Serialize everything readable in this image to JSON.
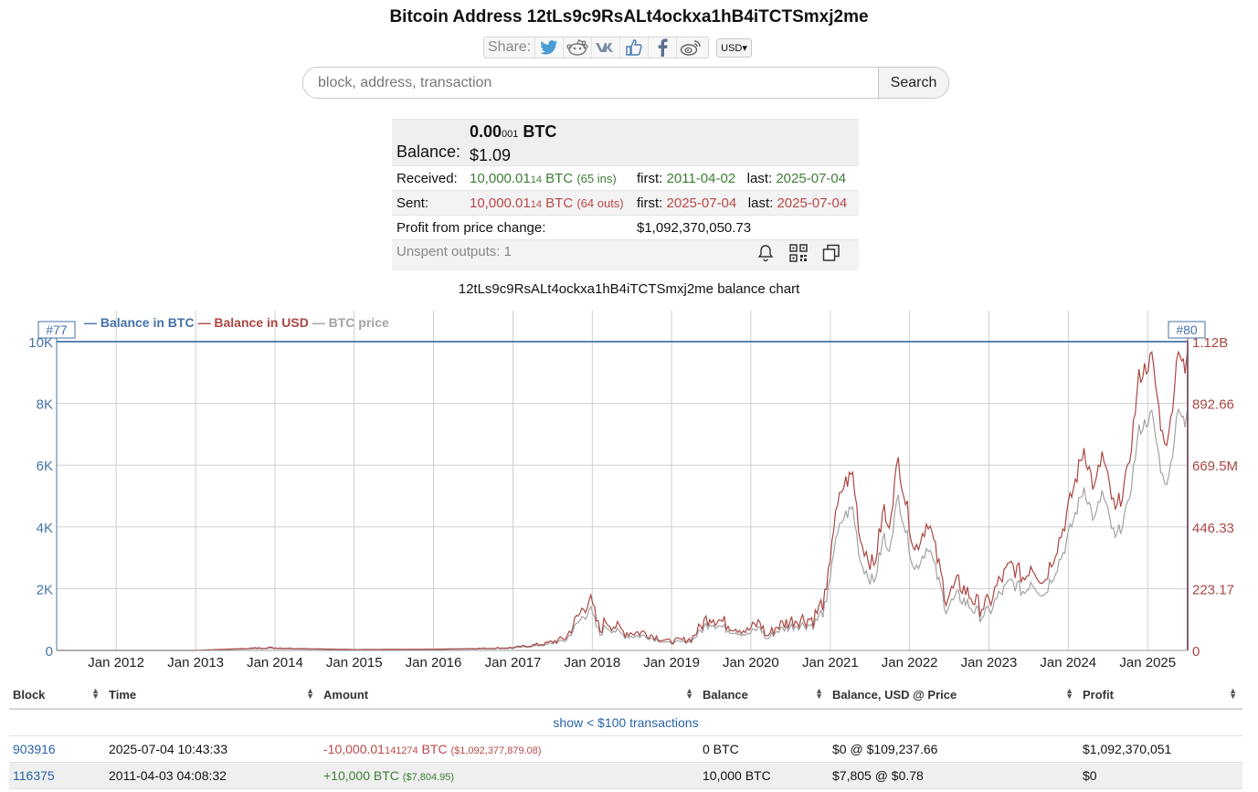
{
  "page": {
    "title": "Bitcoin Address 12tLs9c9RsALt4ockxa1hB4iTCTSmxj2me",
    "share_label": "Share:",
    "share_icons": [
      "twitter-icon",
      "reddit-icon",
      "vk-icon",
      "like-icon",
      "facebook-icon",
      "weibo-icon"
    ],
    "currency": "USD▾"
  },
  "search": {
    "placeholder": "block, address, transaction",
    "button": "Search"
  },
  "summary": {
    "balance_label": "Balance:",
    "balance_btc_main": "0.00",
    "balance_btc_small": "001",
    "balance_btc_unit": " BTC",
    "balance_usd": "$1.09",
    "received_label": "Received:",
    "received_main": "10,000.01",
    "received_small": "14",
    "received_unit": " BTC ",
    "received_count": "(65 ins)",
    "received_first_label": "first:",
    "received_first": "2011-04-02",
    "received_last_label": "last:",
    "received_last": "2025-07-04",
    "sent_label": "Sent:",
    "sent_main": "10,000.01",
    "sent_small": "14",
    "sent_unit": " BTC ",
    "sent_count": "(64 outs)",
    "sent_first_label": "first:",
    "sent_first": "2025-07-04",
    "sent_last_label": "last:",
    "sent_last": "2025-07-04",
    "profit_label": "Profit from price change:",
    "profit_value": "$1,092,370,050.73",
    "unspent_label": "Unspent outputs: 1",
    "action_icons": [
      "bell-icon",
      "qr-code-icon",
      "copy-icon"
    ]
  },
  "chart_title": "12tLs9c9RsALt4ockxa1hB4iTCTSmxj2me balance chart",
  "chart_data": {
    "type": "line",
    "series": [
      {
        "name": "Balance in BTC",
        "color": "#4572a7"
      },
      {
        "name": "Balance in USD",
        "color": "#aa4643"
      },
      {
        "name": "BTC price",
        "color": "#a3a3a3"
      }
    ],
    "left_axis_ticks": [
      "0",
      "2K",
      "4K",
      "6K",
      "8K",
      "10K"
    ],
    "left_axis_range": [
      0,
      10000
    ],
    "right_axis_ticks": [
      "0",
      "223.17",
      "446.33",
      "669.5M",
      "892.66",
      "1.12B"
    ],
    "right_axis_range": [
      0,
      1120000000
    ],
    "x_ticks": [
      "Jan 2012",
      "Jan 2013",
      "Jan 2014",
      "Jan 2015",
      "Jan 2016",
      "Jan 2017",
      "Jan 2018",
      "Jan 2019",
      "Jan 2020",
      "Jan 2021",
      "Jan 2022",
      "Jan 2023",
      "Jan 2024",
      "Jan 2025"
    ],
    "x_range": [
      "2011-04-02",
      "2025-07-04"
    ],
    "grid": true,
    "legend_position": "top-left",
    "markers": [
      "#77",
      "#80"
    ],
    "btc_balance": [
      {
        "x": "2011-04-03",
        "y": 10000
      },
      {
        "x": "2025-07-04",
        "y": 10000
      },
      {
        "x": "2025-07-04",
        "y": 0
      }
    ],
    "usd_balance": [
      {
        "x": "2011-04-03",
        "y": 7805
      },
      {
        "x": "2013-01-01",
        "y": 130000
      },
      {
        "x": "2013-12-01",
        "y": 10000000
      },
      {
        "x": "2014-06-01",
        "y": 6000000
      },
      {
        "x": "2015-01-01",
        "y": 3000000
      },
      {
        "x": "2016-01-01",
        "y": 4300000
      },
      {
        "x": "2016-07-01",
        "y": 6500000
      },
      {
        "x": "2017-01-01",
        "y": 10000000
      },
      {
        "x": "2017-06-01",
        "y": 25000000
      },
      {
        "x": "2017-09-01",
        "y": 45000000
      },
      {
        "x": "2017-12-17",
        "y": 190000000
      },
      {
        "x": "2018-02-06",
        "y": 70000000
      },
      {
        "x": "2018-03-05",
        "y": 110000000
      },
      {
        "x": "2018-06-01",
        "y": 65000000
      },
      {
        "x": "2018-09-01",
        "y": 65000000
      },
      {
        "x": "2018-12-15",
        "y": 33000000
      },
      {
        "x": "2019-04-01",
        "y": 41000000
      },
      {
        "x": "2019-06-26",
        "y": 130000000
      },
      {
        "x": "2019-09-01",
        "y": 100000000
      },
      {
        "x": "2019-12-15",
        "y": 70000000
      },
      {
        "x": "2020-02-12",
        "y": 103000000
      },
      {
        "x": "2020-03-13",
        "y": 50000000
      },
      {
        "x": "2020-05-01",
        "y": 88000000
      },
      {
        "x": "2020-08-01",
        "y": 115000000
      },
      {
        "x": "2020-10-15",
        "y": 115000000
      },
      {
        "x": "2020-12-15",
        "y": 200000000
      },
      {
        "x": "2021-01-08",
        "y": 410000000
      },
      {
        "x": "2021-02-21",
        "y": 580000000
      },
      {
        "x": "2021-03-13",
        "y": 610000000
      },
      {
        "x": "2021-04-14",
        "y": 640000000
      },
      {
        "x": "2021-05-20",
        "y": 400000000
      },
      {
        "x": "2021-07-20",
        "y": 300000000
      },
      {
        "x": "2021-09-06",
        "y": 520000000
      },
      {
        "x": "2021-09-21",
        "y": 430000000
      },
      {
        "x": "2021-11-10",
        "y": 690000000
      },
      {
        "x": "2022-01-24",
        "y": 360000000
      },
      {
        "x": "2022-03-28",
        "y": 475000000
      },
      {
        "x": "2022-06-18",
        "y": 190000000
      },
      {
        "x": "2022-08-14",
        "y": 245000000
      },
      {
        "x": "2022-11-21",
        "y": 158000000
      },
      {
        "x": "2023-01-01",
        "y": 170000000
      },
      {
        "x": "2023-02-15",
        "y": 245000000
      },
      {
        "x": "2023-04-14",
        "y": 310000000
      },
      {
        "x": "2023-06-15",
        "y": 260000000
      },
      {
        "x": "2023-07-13",
        "y": 315000000
      },
      {
        "x": "2023-09-11",
        "y": 250000000
      },
      {
        "x": "2023-12-08",
        "y": 440000000
      },
      {
        "x": "2024-03-14",
        "y": 735000000
      },
      {
        "x": "2024-05-01",
        "y": 580000000
      },
      {
        "x": "2024-06-05",
        "y": 710000000
      },
      {
        "x": "2024-08-05",
        "y": 495000000
      },
      {
        "x": "2024-10-01",
        "y": 640000000
      },
      {
        "x": "2024-11-22",
        "y": 990000000
      },
      {
        "x": "2025-01-20",
        "y": 1060000000
      },
      {
        "x": "2025-03-10",
        "y": 780000000
      },
      {
        "x": "2025-04-08",
        "y": 765000000
      },
      {
        "x": "2025-05-22",
        "y": 1110000000
      },
      {
        "x": "2025-06-22",
        "y": 1000000000
      },
      {
        "x": "2025-07-04",
        "y": 1092377879
      }
    ],
    "btc_price": [
      {
        "x": "2011-04-03",
        "y": 0.78
      },
      {
        "x": "2013-01-01",
        "y": 13
      },
      {
        "x": "2013-12-01",
        "y": 1000
      },
      {
        "x": "2014-06-01",
        "y": 600
      },
      {
        "x": "2015-01-01",
        "y": 300
      },
      {
        "x": "2016-01-01",
        "y": 430
      },
      {
        "x": "2016-07-01",
        "y": 650
      },
      {
        "x": "2017-01-01",
        "y": 1000
      },
      {
        "x": "2017-06-01",
        "y": 2500
      },
      {
        "x": "2017-09-01",
        "y": 4500
      },
      {
        "x": "2017-12-17",
        "y": 19000
      },
      {
        "x": "2018-02-06",
        "y": 7000
      },
      {
        "x": "2018-03-05",
        "y": 11000
      },
      {
        "x": "2018-06-01",
        "y": 6500
      },
      {
        "x": "2018-09-01",
        "y": 6500
      },
      {
        "x": "2018-12-15",
        "y": 3300
      },
      {
        "x": "2019-04-01",
        "y": 4100
      },
      {
        "x": "2019-06-26",
        "y": 13000
      },
      {
        "x": "2019-09-01",
        "y": 10000
      },
      {
        "x": "2019-12-15",
        "y": 7000
      },
      {
        "x": "2020-02-12",
        "y": 10300
      },
      {
        "x": "2020-03-13",
        "y": 5000
      },
      {
        "x": "2020-05-01",
        "y": 8800
      },
      {
        "x": "2020-08-01",
        "y": 11500
      },
      {
        "x": "2020-10-15",
        "y": 11500
      },
      {
        "x": "2020-12-15",
        "y": 20000
      },
      {
        "x": "2021-01-08",
        "y": 41000
      },
      {
        "x": "2021-02-21",
        "y": 58000
      },
      {
        "x": "2021-03-13",
        "y": 61000
      },
      {
        "x": "2021-04-14",
        "y": 64000
      },
      {
        "x": "2021-05-20",
        "y": 40000
      },
      {
        "x": "2021-07-20",
        "y": 30000
      },
      {
        "x": "2021-09-06",
        "y": 52000
      },
      {
        "x": "2021-09-21",
        "y": 43000
      },
      {
        "x": "2021-11-10",
        "y": 69000
      },
      {
        "x": "2022-01-24",
        "y": 36000
      },
      {
        "x": "2022-03-28",
        "y": 47500
      },
      {
        "x": "2022-06-18",
        "y": 19000
      },
      {
        "x": "2022-08-14",
        "y": 24500
      },
      {
        "x": "2022-11-21",
        "y": 15800
      },
      {
        "x": "2023-01-01",
        "y": 17000
      },
      {
        "x": "2023-02-15",
        "y": 24500
      },
      {
        "x": "2023-04-14",
        "y": 31000
      },
      {
        "x": "2023-06-15",
        "y": 26000
      },
      {
        "x": "2023-07-13",
        "y": 31500
      },
      {
        "x": "2023-09-11",
        "y": 25000
      },
      {
        "x": "2023-12-08",
        "y": 44000
      },
      {
        "x": "2024-03-14",
        "y": 73500
      },
      {
        "x": "2024-05-01",
        "y": 58000
      },
      {
        "x": "2024-06-05",
        "y": 71000
      },
      {
        "x": "2024-08-05",
        "y": 49500
      },
      {
        "x": "2024-10-01",
        "y": 64000
      },
      {
        "x": "2024-11-22",
        "y": 99000
      },
      {
        "x": "2025-01-20",
        "y": 106000
      },
      {
        "x": "2025-03-10",
        "y": 78000
      },
      {
        "x": "2025-04-08",
        "y": 76500
      },
      {
        "x": "2025-05-22",
        "y": 111000
      },
      {
        "x": "2025-06-22",
        "y": 100000
      },
      {
        "x": "2025-07-04",
        "y": 109237.66
      }
    ]
  },
  "table": {
    "headers": [
      "Block",
      "Time",
      "Amount",
      "Balance",
      "Balance, USD @ Price",
      "Profit"
    ],
    "show_small_link": "show < $100 transactions",
    "rows": [
      {
        "block": "903916",
        "time": "2025-07-04 10:43:33",
        "amount_main": "-10,000.01",
        "amount_small": "141274",
        "amount_unit": " BTC ",
        "amount_usd": "($1,092,377,879.08)",
        "balance": "0 BTC",
        "balance_usd": "$0 @ $109,237.66",
        "profit": "$1,092,370,051"
      },
      {
        "block": "116375",
        "time": "2011-04-03 04:08:32",
        "amount_main": "+10,000",
        "amount_small": "",
        "amount_unit": " BTC ",
        "amount_usd": "($7,804.95)",
        "balance": "10,000 BTC",
        "balance_usd": "$7,805 @ $0.78",
        "profit": "$0"
      }
    ]
  }
}
